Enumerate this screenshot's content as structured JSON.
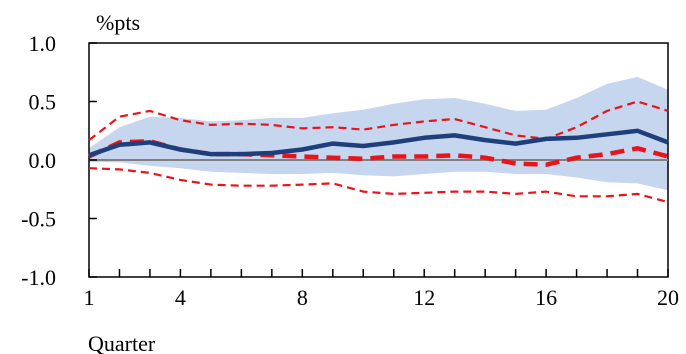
{
  "chart_data": {
    "type": "line",
    "ylabel": "%pts",
    "xlabel": "Quarter",
    "title": "",
    "xlim": [
      1,
      20
    ],
    "ylim": [
      -1.0,
      1.0
    ],
    "x_ticks": [
      1,
      4,
      8,
      12,
      16,
      20
    ],
    "y_ticks": [
      "1.0",
      "0.5",
      "0.0",
      "-0.5",
      "-1.0"
    ],
    "grid": false,
    "legend": "none",
    "x": [
      1,
      2,
      3,
      4,
      5,
      6,
      7,
      8,
      9,
      10,
      11,
      12,
      13,
      14,
      15,
      16,
      17,
      18,
      19,
      20
    ],
    "band": {
      "upper": [
        0.1,
        0.28,
        0.37,
        0.36,
        0.33,
        0.34,
        0.36,
        0.36,
        0.4,
        0.43,
        0.48,
        0.52,
        0.53,
        0.48,
        0.42,
        0.43,
        0.53,
        0.65,
        0.71,
        0.6
      ],
      "lower": [
        -0.02,
        -0.02,
        -0.05,
        -0.07,
        -0.1,
        -0.11,
        -0.12,
        -0.12,
        -0.11,
        -0.13,
        -0.14,
        -0.12,
        -0.1,
        -0.1,
        -0.12,
        -0.12,
        -0.15,
        -0.19,
        -0.2,
        -0.26
      ],
      "color": "#c6d6ee"
    },
    "series": [
      {
        "values": [
          0.04,
          0.13,
          0.15,
          0.09,
          0.05,
          0.05,
          0.06,
          0.09,
          0.14,
          0.12,
          0.15,
          0.19,
          0.21,
          0.17,
          0.14,
          0.18,
          0.19,
          0.22,
          0.25,
          0.15
        ],
        "color": "#1f3f7a",
        "style": "solid"
      },
      {
        "values": [
          0.03,
          0.15,
          0.16,
          0.09,
          0.05,
          0.05,
          0.04,
          0.03,
          0.02,
          0.01,
          0.03,
          0.03,
          0.04,
          0.02,
          -0.03,
          -0.04,
          0.02,
          0.05,
          0.1,
          0.03
        ],
        "color": "#e8141c",
        "style": "dashed-thick"
      },
      {
        "values": [
          0.17,
          0.37,
          0.42,
          0.34,
          0.3,
          0.31,
          0.3,
          0.27,
          0.28,
          0.26,
          0.3,
          0.33,
          0.35,
          0.28,
          0.21,
          0.18,
          0.28,
          0.42,
          0.5,
          0.42
        ],
        "color": "#e8141c",
        "style": "dashed-thin"
      },
      {
        "values": [
          -0.07,
          -0.08,
          -0.11,
          -0.17,
          -0.21,
          -0.22,
          -0.22,
          -0.21,
          -0.2,
          -0.27,
          -0.29,
          -0.28,
          -0.27,
          -0.27,
          -0.29,
          -0.27,
          -0.31,
          -0.31,
          -0.29,
          -0.36
        ],
        "color": "#e8141c",
        "style": "dashed-thin"
      }
    ],
    "zero_line_color": "#808080"
  }
}
